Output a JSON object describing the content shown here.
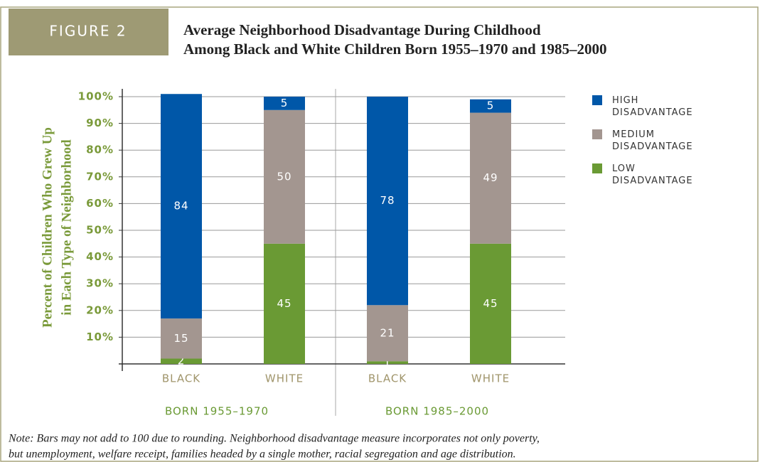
{
  "chart_data": {
    "type": "stacked_bar",
    "figure_label": "FIGURE 2",
    "title": [
      "Average Neighborhood Disadvantage During Childhood",
      "Among Black and White Children Born 1955–1970 and 1985–2000"
    ],
    "y_label": [
      "Percent of Children Who Grew Up",
      "in Each Type of Neighborhood"
    ],
    "categories": [
      "BLACK",
      "WHITE",
      "BLACK",
      "WHITE"
    ],
    "groups": [
      "BORN 1955–1970",
      "BORN 1985–2000"
    ],
    "series": [
      {
        "name": "LOW DISADVANTAGE",
        "color": "#6a9a34",
        "values": [
          2,
          45,
          1,
          45
        ]
      },
      {
        "name": "MEDIUM DISADVANTAGE",
        "color": "#a39690",
        "values": [
          15,
          50,
          21,
          49
        ]
      },
      {
        "name": "HIGH DISADVANTAGE",
        "color": "#0057a8",
        "values": [
          84,
          5,
          78,
          5
        ]
      }
    ],
    "ylim": [
      0,
      100
    ],
    "yticks": [
      {
        "value": 10,
        "label": "10%"
      },
      {
        "value": 20,
        "label": "20%"
      },
      {
        "value": 30,
        "label": "30%"
      },
      {
        "value": 40,
        "label": "40%"
      },
      {
        "value": 50,
        "label": "50%"
      },
      {
        "value": 60,
        "label": "60%"
      },
      {
        "value": 70,
        "label": "70%"
      },
      {
        "value": 80,
        "label": "80%"
      },
      {
        "value": 90,
        "label": "90%"
      },
      {
        "value": 100,
        "label": "100%"
      }
    ],
    "grid": true,
    "legend": "right",
    "note": [
      "Note: Bars may not add to 100 due to rounding. Neighborhood disadvantage measure incorporates not only poverty,",
      "but unemployment, welfare receipt, families headed by a single mother, racial segregation and age distribution."
    ]
  }
}
